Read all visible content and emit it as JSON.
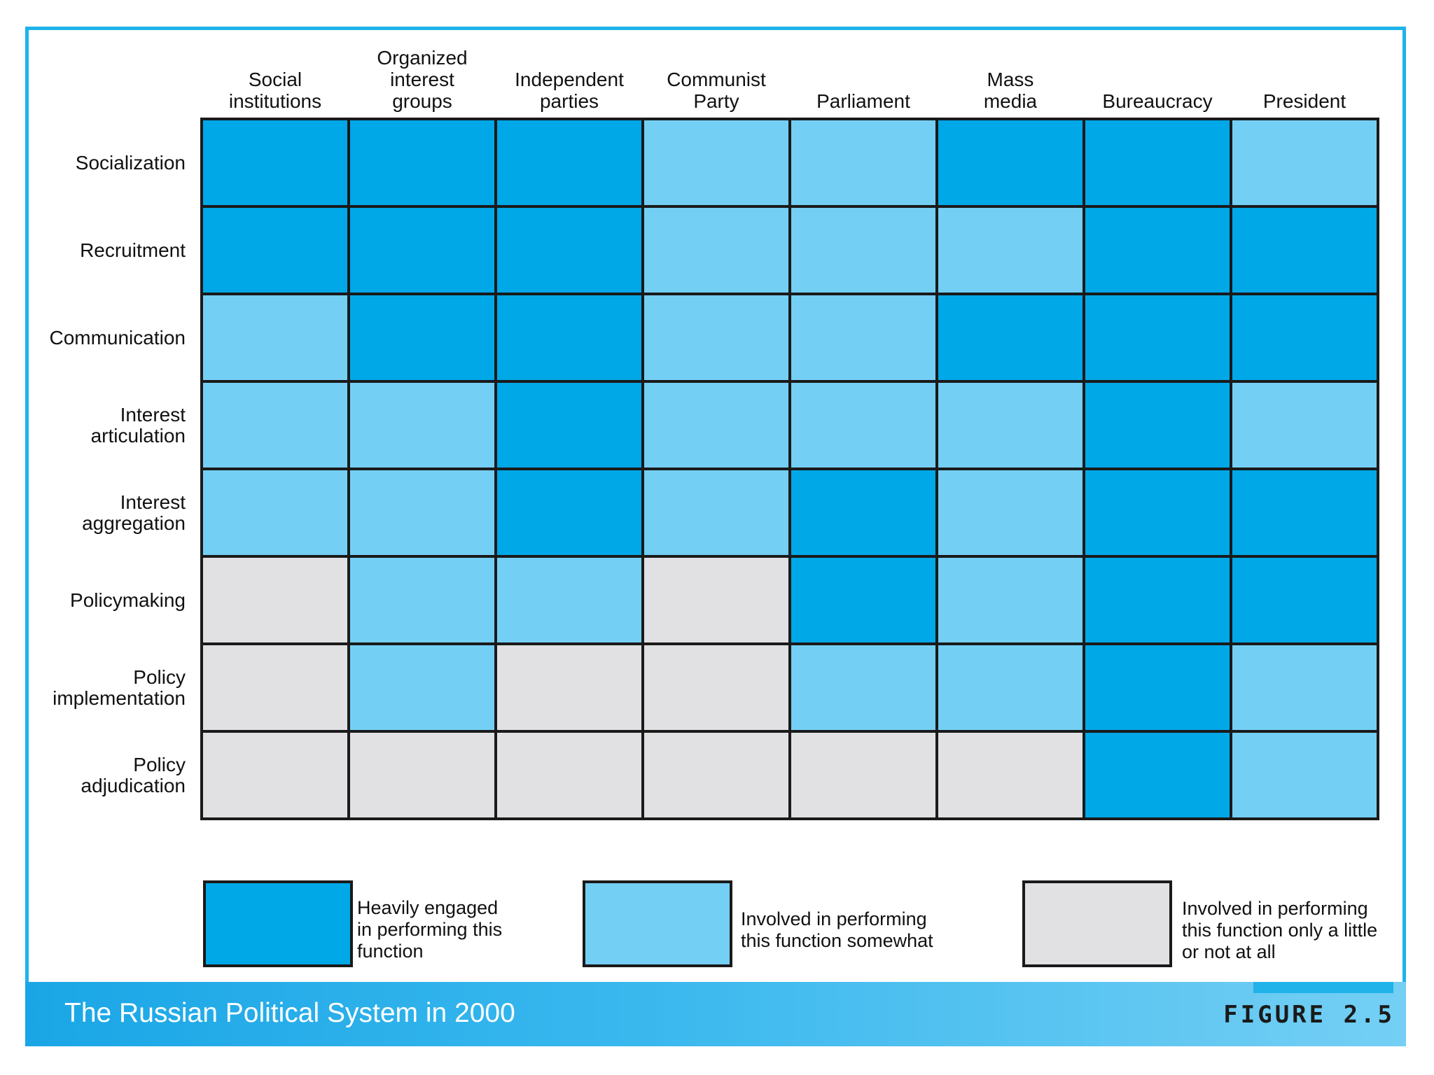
{
  "chart_data": {
    "type": "heatmap",
    "title": "The Russian Political System in 2000",
    "figure_label": "FIGURE 2.5",
    "columns": [
      "Social\ninstitutions",
      "Organized\ninterest\ngroups",
      "Independent\nparties",
      "Communist\nParty",
      "Parliament",
      "Mass\nmedia",
      "Bureaucracy",
      "President"
    ],
    "rows": [
      "Socialization",
      "Recruitment",
      "Communication",
      "Interest\narticulation",
      "Interest\naggregation",
      "Policymaking",
      "Policy\nimplementation",
      "Policy\nadjudication"
    ],
    "levels": [
      {
        "value": 2,
        "label": "Heavily engaged\nin performing this\nfunction",
        "color": "#00a8e8"
      },
      {
        "value": 1,
        "label": "Involved in performing\nthis function somewhat",
        "color": "#74cff4"
      },
      {
        "value": 0,
        "label": "Involved in performing\nthis function only a little\nor not at all",
        "color": "#e1e1e3"
      }
    ],
    "values": [
      [
        2,
        2,
        2,
        1,
        1,
        2,
        2,
        1
      ],
      [
        2,
        2,
        2,
        1,
        1,
        1,
        2,
        2
      ],
      [
        1,
        2,
        2,
        1,
        1,
        2,
        2,
        2
      ],
      [
        1,
        1,
        2,
        1,
        1,
        1,
        2,
        1
      ],
      [
        1,
        1,
        2,
        1,
        2,
        1,
        2,
        2
      ],
      [
        0,
        1,
        1,
        0,
        2,
        1,
        2,
        2
      ],
      [
        0,
        1,
        0,
        0,
        1,
        1,
        2,
        1
      ],
      [
        0,
        0,
        0,
        0,
        0,
        0,
        2,
        1
      ]
    ]
  },
  "colors": {
    "frame": "#1fb3e9",
    "grid_line": "#1a1a1a"
  }
}
